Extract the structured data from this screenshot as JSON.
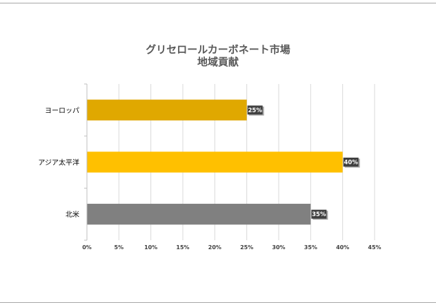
{
  "chart_data": {
    "type": "bar",
    "orientation": "horizontal",
    "title_lines": [
      "グリセロールカーボネート市場",
      "地域貢献"
    ],
    "categories": [
      "ヨーロッパ",
      "アジア太平洋",
      "北米"
    ],
    "values": [
      25,
      40,
      35
    ],
    "data_labels": [
      "25%",
      "40%",
      "35%"
    ],
    "bar_colors": [
      "#e0a800",
      "#ffc000",
      "#808080"
    ],
    "xlim": [
      0,
      45
    ],
    "x_ticks": [
      0,
      5,
      10,
      15,
      20,
      25,
      30,
      35,
      40,
      45
    ],
    "x_tick_labels": [
      "0%",
      "5%",
      "10%",
      "15%",
      "20%",
      "25%",
      "30%",
      "35%",
      "40%",
      "45%"
    ],
    "grid": "vertical",
    "legend": "none"
  }
}
